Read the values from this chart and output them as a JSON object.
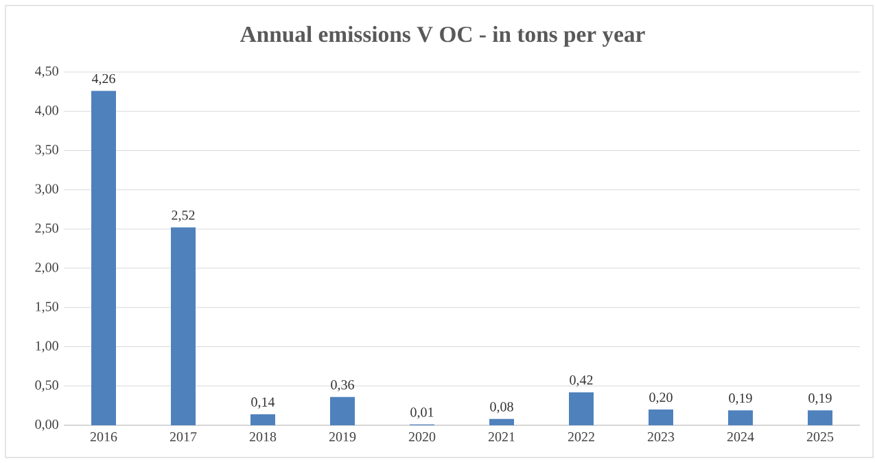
{
  "chart_data": {
    "type": "bar",
    "title": "Annual emissions V OC - in tons per year",
    "categories": [
      "2016",
      "2017",
      "2018",
      "2019",
      "2020",
      "2021",
      "2022",
      "2023",
      "2024",
      "2025"
    ],
    "values": [
      4.26,
      2.52,
      0.14,
      0.36,
      0.01,
      0.08,
      0.42,
      0.2,
      0.19,
      0.19
    ],
    "value_labels": [
      "4,26",
      "2,52",
      "0,14",
      "0,36",
      "0,01",
      "0,08",
      "0,42",
      "0,20",
      "0,19",
      "0,19"
    ],
    "color": "#4f81bd",
    "ylim": [
      0,
      4.5
    ],
    "yticks": [
      {
        "value": 0,
        "label": "0,00"
      },
      {
        "value": 0.5,
        "label": "0,50"
      },
      {
        "value": 1,
        "label": "1,00"
      },
      {
        "value": 1.5,
        "label": "1,50"
      },
      {
        "value": 2,
        "label": "2,00"
      },
      {
        "value": 2.5,
        "label": "2,50"
      },
      {
        "value": 3,
        "label": "3,00"
      },
      {
        "value": 3.5,
        "label": "3,50"
      },
      {
        "value": 4,
        "label": "4,00"
      },
      {
        "value": 4.5,
        "label": "4,50"
      }
    ],
    "grid": "y"
  }
}
